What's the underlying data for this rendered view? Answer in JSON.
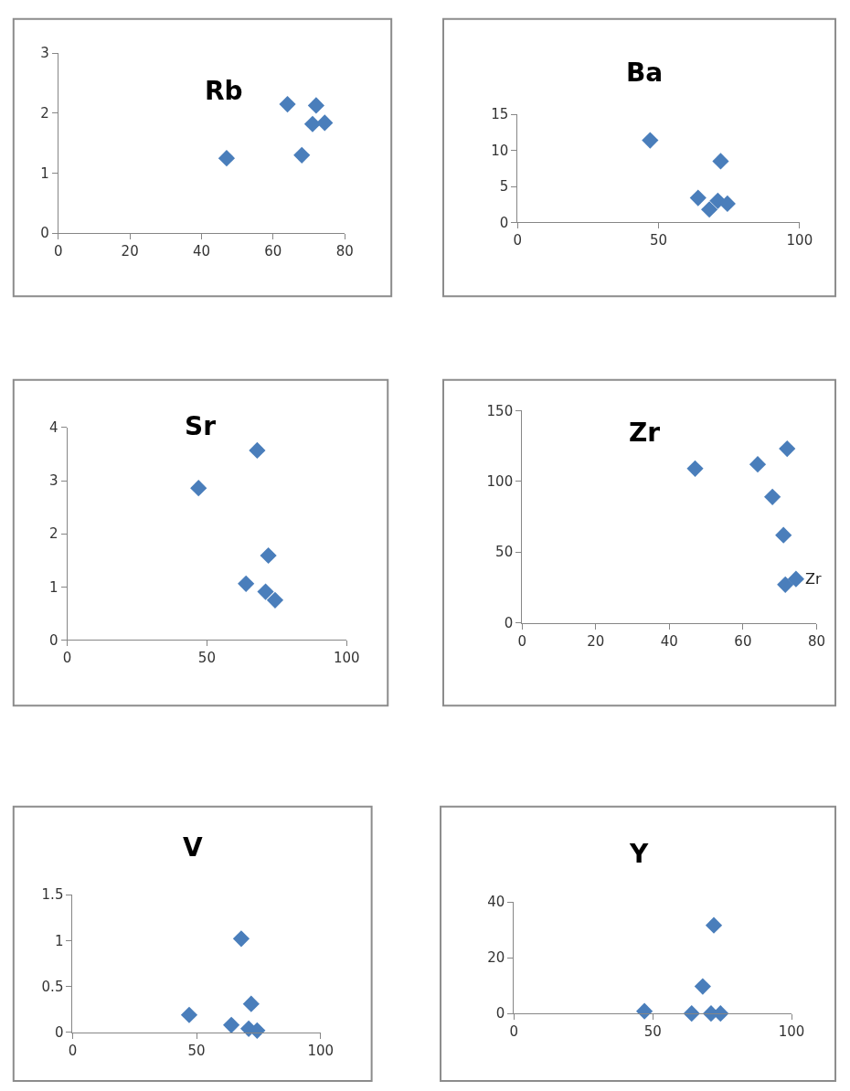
{
  "chart_data": [
    {
      "type": "scatter",
      "title": "Rb",
      "x": [
        47,
        64,
        68,
        71,
        72,
        74.4
      ],
      "values": [
        1.25,
        2.15,
        1.3,
        1.82,
        2.13,
        1.84
      ],
      "color": "#4a7ebb",
      "marker": "diamond",
      "xlim": [
        0,
        80
      ],
      "xticks": [
        0,
        20,
        40,
        60,
        80
      ],
      "ylim": [
        0,
        3
      ],
      "yticks": [
        0,
        1,
        2,
        3
      ]
    },
    {
      "type": "scatter",
      "title": "Ba",
      "x": [
        47,
        64,
        68,
        71,
        72,
        74.4
      ],
      "values": [
        11.4,
        3.4,
        1.8,
        3.0,
        8.5,
        2.6
      ],
      "color": "#4a7ebb",
      "marker": "diamond",
      "xlim": [
        0,
        100
      ],
      "xticks": [
        0,
        50,
        100
      ],
      "ylim": [
        0,
        15
      ],
      "yticks": [
        0,
        5,
        10,
        15
      ]
    },
    {
      "type": "scatter",
      "title": "Sr",
      "x": [
        47,
        64,
        68,
        71,
        72,
        74.4
      ],
      "values": [
        2.86,
        1.06,
        3.57,
        0.91,
        1.59,
        0.75
      ],
      "color": "#4a7ebb",
      "marker": "diamond",
      "xlim": [
        0,
        100
      ],
      "xticks": [
        0,
        50,
        100
      ],
      "ylim": [
        0,
        4
      ],
      "yticks": [
        0,
        1,
        2,
        3,
        4
      ]
    },
    {
      "type": "scatter",
      "title": "Zr",
      "x": [
        47,
        64,
        68,
        71,
        71.5,
        72,
        74.4
      ],
      "values": [
        109,
        112,
        89,
        62,
        27,
        123,
        31
      ],
      "color": "#4a7ebb",
      "marker": "diamond",
      "xlim": [
        0,
        80
      ],
      "xticks": [
        0,
        20,
        40,
        60,
        80
      ],
      "ylim": [
        0,
        150
      ],
      "yticks": [
        0,
        50,
        100,
        150
      ],
      "annotations": [
        {
          "text": "Zr",
          "x": 74.4,
          "y": 31
        }
      ]
    },
    {
      "type": "scatter",
      "title": "V",
      "x": [
        47,
        64,
        68,
        71,
        72,
        74.4
      ],
      "values": [
        0.19,
        0.08,
        1.02,
        0.04,
        0.31,
        0.02
      ],
      "color": "#4a7ebb",
      "marker": "diamond",
      "xlim": [
        0,
        100
      ],
      "xticks": [
        0,
        50,
        100
      ],
      "ylim": [
        0,
        1.5
      ],
      "yticks": [
        0,
        0.5,
        1,
        1.5
      ]
    },
    {
      "type": "scatter",
      "title": "Y",
      "x": [
        47,
        64,
        68,
        71,
        72,
        74.4
      ],
      "values": [
        0.8,
        0,
        9.7,
        0,
        31.6,
        0
      ],
      "color": "#4a7ebb",
      "marker": "diamond",
      "xlim": [
        0,
        100
      ],
      "xticks": [
        0,
        50,
        100
      ],
      "ylim": [
        0,
        40
      ],
      "yticks": [
        0,
        20,
        40
      ]
    }
  ]
}
